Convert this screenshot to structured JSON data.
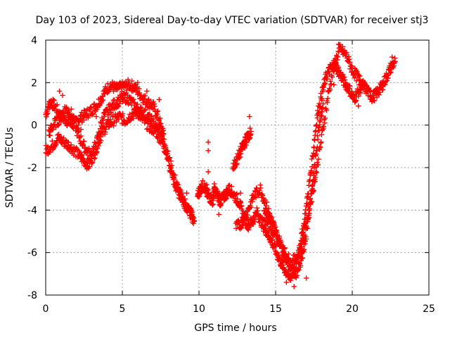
{
  "chart_data": {
    "type": "scatter",
    "title": "Day 103 of 2023, Sidereal Day-to-day VTEC variation (SDTVAR) for receiver stj3",
    "xlabel": "GPS time / hours",
    "ylabel": "SDTVAR / TECUs",
    "xlim": [
      0,
      25
    ],
    "ylim": [
      -8,
      4
    ],
    "xticks": [
      "0",
      "5",
      "10",
      "15",
      "20",
      "25"
    ],
    "yticks": [
      "-8",
      "-6",
      "-4",
      "-2",
      "0",
      "2",
      "4"
    ],
    "grid": true,
    "marker": "+",
    "series": [
      {
        "name": "SDTVAR",
        "color": "#ff0000",
        "bands": [
          {
            "x": [
              0.0,
              0.3,
              0.6,
              1.0,
              1.4,
              1.8,
              2.2,
              2.6,
              3.0,
              3.4,
              3.8,
              4.2,
              4.6,
              5.0,
              5.4,
              5.8,
              6.2,
              6.6,
              7.0,
              7.4,
              7.8,
              8.2,
              8.6,
              9.0,
              9.4,
              9.7
            ],
            "y": [
              0.5,
              1.1,
              0.9,
              0.4,
              0.2,
              0.0,
              0.3,
              0.5,
              0.7,
              1.0,
              1.5,
              1.9,
              1.7,
              1.8,
              1.9,
              1.8,
              1.4,
              1.1,
              0.9,
              0.3,
              -1.0,
              -2.3,
              -3.1,
              -3.6,
              -4.1,
              -4.5
            ]
          },
          {
            "x": [
              0.0,
              0.4,
              0.8,
              1.2,
              1.6,
              2.0,
              2.4,
              2.8,
              3.2,
              3.6,
              4.0,
              4.4,
              4.8,
              5.2,
              5.6,
              6.0,
              6.4,
              6.8,
              7.2,
              7.6,
              8.0,
              8.4,
              8.8,
              9.2,
              9.6
            ],
            "y": [
              -1.2,
              -1.0,
              -0.6,
              -0.8,
              -1.0,
              -1.3,
              -1.6,
              -1.9,
              -1.3,
              -0.5,
              0.0,
              0.2,
              0.4,
              0.2,
              0.5,
              0.6,
              0.2,
              -0.1,
              -0.3,
              -0.8,
              -1.5,
              -2.5,
              -3.3,
              -3.8,
              -4.3
            ]
          },
          {
            "x": [
              0.2,
              0.5,
              0.9,
              1.3,
              1.7,
              2.1,
              2.5,
              2.9,
              3.3,
              3.7,
              4.1,
              4.5,
              4.9,
              5.3,
              5.7,
              6.1,
              6.5,
              6.9,
              7.3,
              7.7
            ],
            "y": [
              -0.4,
              0.0,
              0.3,
              0.8,
              0.5,
              -0.4,
              -1.0,
              -1.4,
              -0.9,
              0.3,
              0.7,
              1.0,
              1.2,
              1.3,
              1.0,
              0.7,
              0.5,
              0.2,
              -0.2,
              -0.4
            ]
          },
          {
            "x": [
              9.9,
              10.1,
              10.3,
              10.5,
              10.7,
              10.9,
              11.0,
              11.2,
              11.4,
              11.6,
              11.8,
              12.0,
              12.3,
              12.6,
              12.9,
              13.2,
              13.5,
              13.8,
              14.1,
              14.4,
              14.7,
              15.0,
              15.3,
              15.6,
              15.9,
              16.2,
              16.5,
              16.8,
              17.1,
              17.4,
              17.7,
              18.0,
              18.3,
              18.6,
              18.9,
              19.2,
              19.5,
              19.8,
              20.1,
              20.4,
              20.7,
              21.0,
              21.3,
              21.6,
              21.9,
              22.2,
              22.5,
              22.8
            ],
            "y": [
              -3.3,
              -3.0,
              -2.8,
              -3.2,
              -3.4,
              -3.6,
              -3.0,
              -3.3,
              -3.6,
              -3.4,
              -3.2,
              -3.0,
              -3.3,
              -3.6,
              -4.3,
              -4.7,
              -4.5,
              -4.1,
              -4.6,
              -5.0,
              -5.4,
              -5.9,
              -6.4,
              -6.8,
              -7.2,
              -6.9,
              -6.0,
              -4.9,
              -3.3,
              -1.6,
              0.4,
              1.4,
              2.3,
              2.7,
              2.8,
              2.4,
              2.0,
              1.7,
              1.2,
              1.6,
              1.9,
              1.6,
              1.3,
              1.5,
              1.8,
              2.2,
              2.7,
              3.0
            ]
          },
          {
            "x": [
              12.4,
              12.8,
              13.2,
              13.6,
              14.0,
              14.4,
              14.8,
              15.2,
              15.6,
              16.0,
              16.4,
              16.8,
              17.2,
              17.6,
              18.0,
              18.4,
              18.8,
              19.2,
              19.6,
              20.0,
              20.4,
              20.8
            ],
            "y": [
              -4.8,
              -4.6,
              -4.0,
              -3.3,
              -3.0,
              -3.8,
              -4.6,
              -5.4,
              -6.0,
              -6.5,
              -6.2,
              -5.3,
              -3.9,
              -2.4,
              -0.6,
              1.3,
              2.8,
              3.6,
              3.3,
              2.6,
              2.2,
              1.8
            ]
          },
          {
            "x": [
              14.2,
              14.5,
              14.8,
              15.1,
              15.4,
              15.7,
              16.0,
              16.3,
              16.6,
              16.9,
              17.2,
              17.5,
              17.8,
              18.1
            ],
            "y": [
              -4.2,
              -4.5,
              -4.9,
              -5.3,
              -5.8,
              -6.3,
              -6.7,
              -7.0,
              -6.6,
              -5.6,
              -4.0,
              -2.2,
              -0.3,
              1.0
            ]
          },
          {
            "x": [
              12.2,
              12.5,
              12.8,
              13.0,
              13.2,
              13.4
            ],
            "y": [
              -2.0,
              -1.6,
              -1.1,
              -0.8,
              -0.5,
              -0.3
            ]
          }
        ],
        "points": [
          [
            0.9,
            1.6
          ],
          [
            1.1,
            1.4
          ],
          [
            2.3,
            -0.2
          ],
          [
            2.7,
            -1.8
          ],
          [
            3.3,
            0.4
          ],
          [
            5.1,
            1.9
          ],
          [
            6.0,
            2.0
          ],
          [
            6.6,
            1.6
          ],
          [
            7.4,
            1.2
          ],
          [
            9.2,
            -3.2
          ],
          [
            10.6,
            -1.2
          ],
          [
            10.6,
            -0.8
          ],
          [
            10.6,
            -2.2
          ],
          [
            10.5,
            -2.8
          ],
          [
            11.3,
            -4.2
          ],
          [
            12.7,
            -3.2
          ],
          [
            13.3,
            0.4
          ],
          [
            15.7,
            -7.4
          ],
          [
            16.2,
            -7.6
          ],
          [
            16.6,
            -5.8
          ],
          [
            17.0,
            -7.2
          ],
          [
            18.8,
            1.9
          ],
          [
            19.1,
            3.8
          ],
          [
            19.4,
            3.5
          ],
          [
            20.4,
            0.9
          ],
          [
            21.2,
            1.6
          ],
          [
            22.6,
            3.2
          ]
        ]
      }
    ]
  }
}
